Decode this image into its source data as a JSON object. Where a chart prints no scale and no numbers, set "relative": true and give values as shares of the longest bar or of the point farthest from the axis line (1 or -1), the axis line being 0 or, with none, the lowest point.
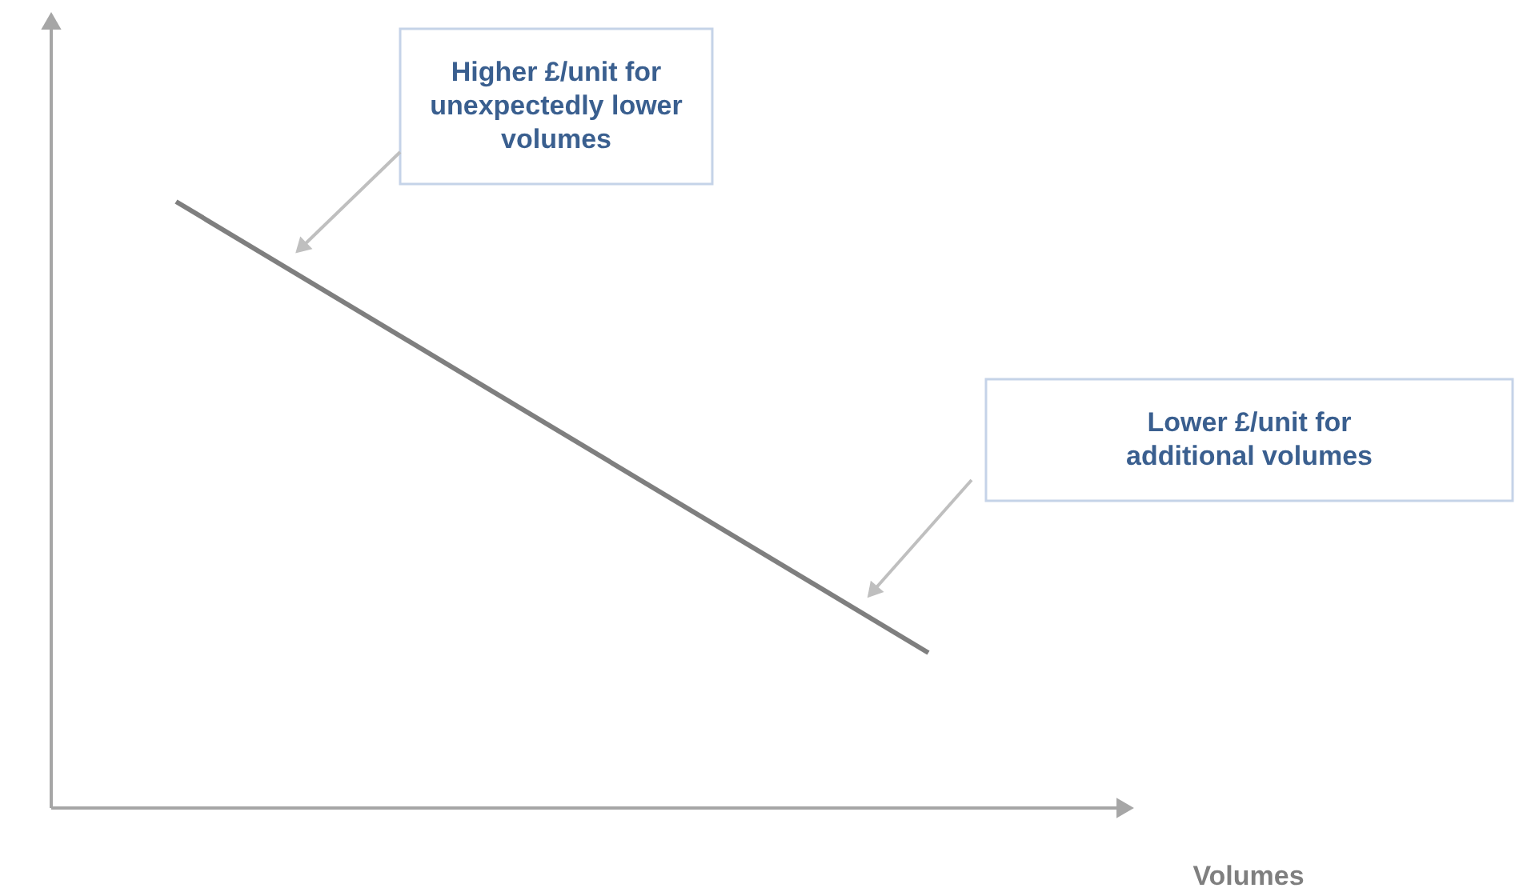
{
  "chart_data": {
    "type": "line",
    "relative": true,
    "xlabel": "Volumes",
    "categories": [
      null,
      null
    ],
    "series": [
      {
        "color": "#7f7f7f",
        "values": [
          1,
          0.256
        ]
      }
    ],
    "annotations": [
      "Higher £/unit for\nunexpectedly lower\nvolumes",
      "Lower £/unit for\nadditional volumes"
    ],
    "marker": "none",
    "line_style": "solid"
  }
}
